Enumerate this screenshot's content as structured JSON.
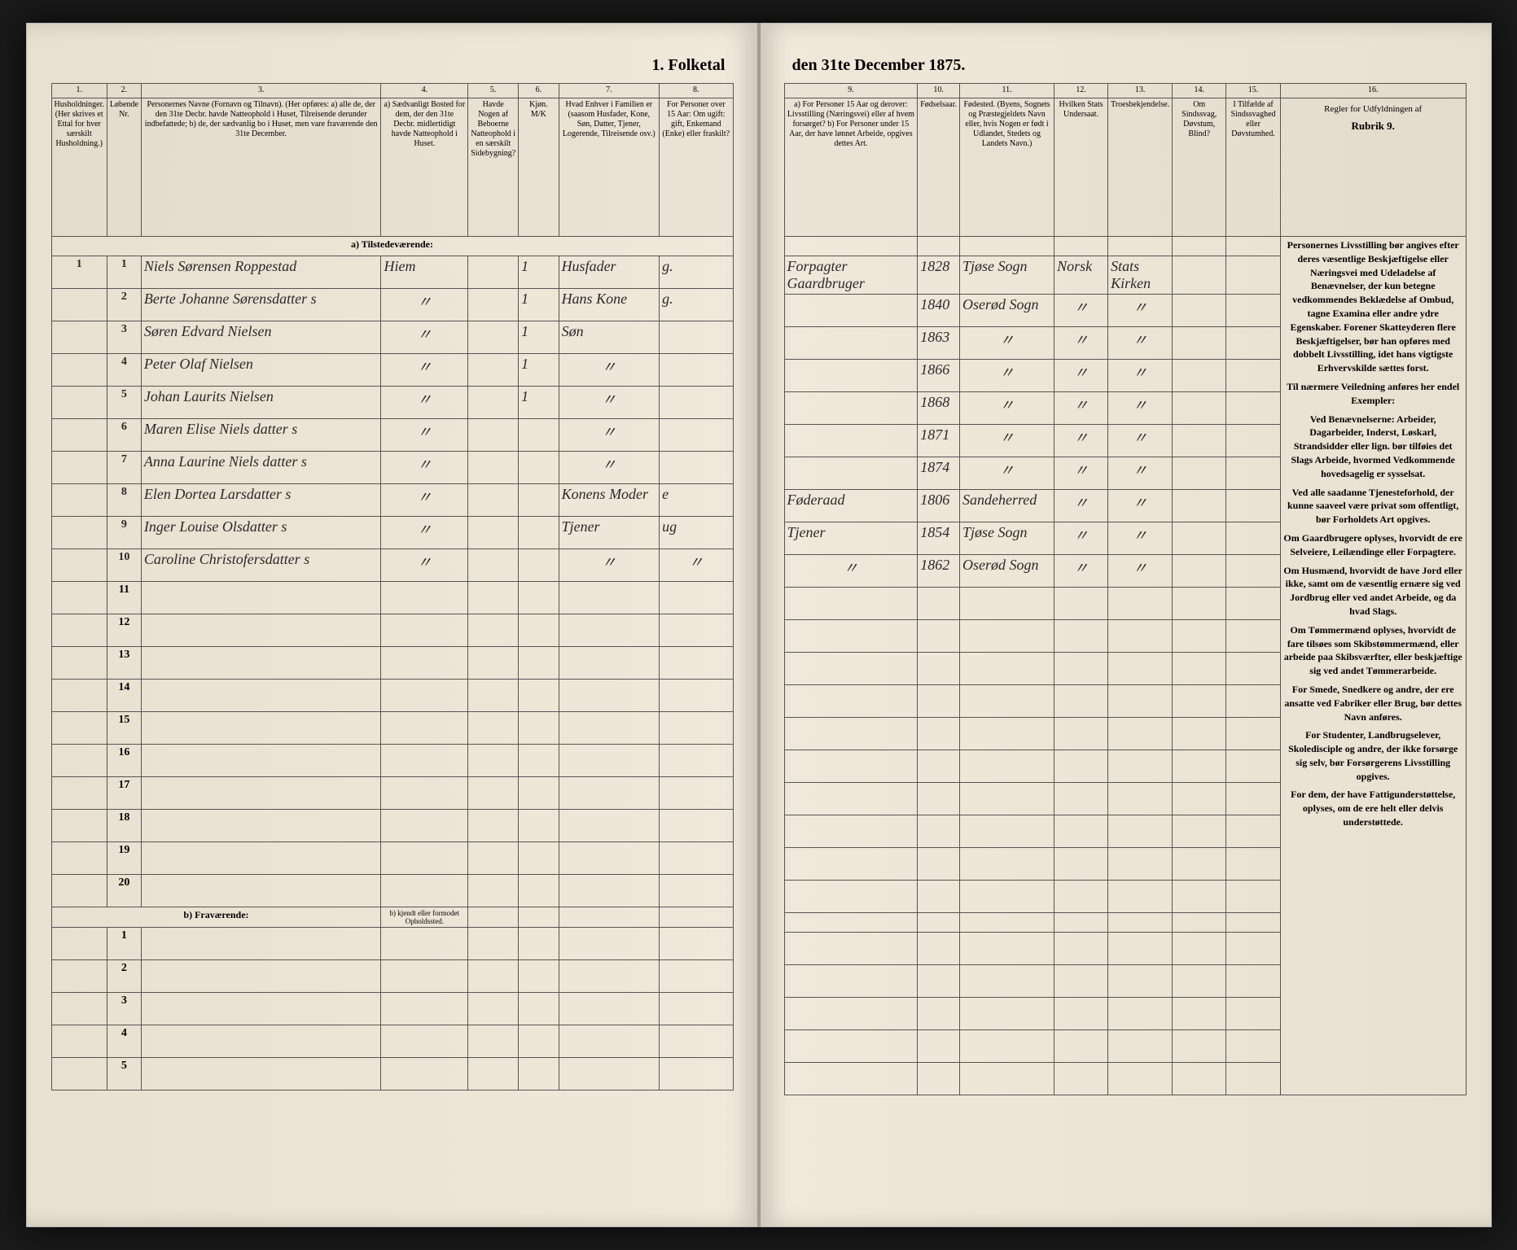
{
  "title_left": "1. Folketal",
  "title_right": "den 31te December 1875.",
  "left_columns": [
    {
      "num": "1.",
      "width": "4%",
      "header": "Husholdninger. (Her skrives et Ettal for hver særskilt Husholdning.)"
    },
    {
      "num": "2.",
      "width": "3%",
      "header": "Løbende Nr."
    },
    {
      "num": "3.",
      "width": "36%",
      "header": "Personernes Navne (Fornavn og Tilnavn). (Her opføres: a) alle de, der den 31te Decbr. havde Natteophold i Huset, Tilreisende derunder indbefattede; b) de, der sædvanlig bo i Huset, men vare fraværende den 31te December."
    },
    {
      "num": "4.",
      "width": "13%",
      "header": "a) Sædvanligt Bosted for dem, der den 31te Decbr. midlertidigt havde Natteophold i Huset."
    },
    {
      "num": "5.",
      "width": "6%",
      "header": "Havde Nogen af Beboerne Natteophold i en særskilt Sidebygning?"
    },
    {
      "num": "6.",
      "width": "6%",
      "header": "Kjøn. M/K"
    },
    {
      "num": "7.",
      "width": "15%",
      "header": "Hvad Enhver i Familien er (saasom Husfader, Kone, Søn, Datter, Tjener, Logerende, Tilreisende osv.)"
    },
    {
      "num": "8.",
      "width": "11%",
      "header": "For Personer over 15 Aar: Om ugift: gift, Enkemand (Enke) eller fraskilt?"
    }
  ],
  "right_columns": [
    {
      "num": "9.",
      "width": "20%",
      "header": "a) For Personer 15 Aar og derover: Livsstilling (Næringsvei) eller af hvem forsørget? b) For Personer under 15 Aar, der have lønnet Arbeide, opgives dettes Art."
    },
    {
      "num": "10.",
      "width": "6%",
      "header": "Fødselsaar."
    },
    {
      "num": "11.",
      "width": "14%",
      "header": "Fødested. (Byens, Sognets og Præstegjeldets Navn eller, hvis Nogen er født i Udlandet, Stedets og Landets Navn.)"
    },
    {
      "num": "12.",
      "width": "8%",
      "header": "Hvilken Stats Undersaat."
    },
    {
      "num": "13.",
      "width": "8%",
      "header": "Troesbekjendelse."
    },
    {
      "num": "14.",
      "width": "8%",
      "header": "Om Sindssvag, Døvstum, Blind?"
    },
    {
      "num": "15.",
      "width": "8%",
      "header": "I Tilfælde af Sindssvaghed eller Døvstumhed."
    },
    {
      "num": "16.",
      "width": "28%",
      "header": ""
    }
  ],
  "instructions_title": "Regler for Udfyldningen af",
  "instructions_rubrik": "Rubrik 9.",
  "instructions_paragraphs": [
    "Personernes Livsstilling bør angives efter deres væsentlige Beskjæftigelse eller Næringsvei med Udeladelse af Benævnelser, der kun betegne vedkommendes Beklædelse af Ombud, tagne Examina eller andre ydre Egenskaber. Forener Skatteyderen flere Beskjæftigelser, bør han opføres med dobbelt Livsstilling, idet hans vigtigste Erhvervskilde sættes forst.",
    "Til nærmere Veiledning anføres her endel Exempler:",
    "Ved Benævnelserne: Arbeider, Dagarbeider, Inderst, Løskarl, Strandsidder eller lign. bør tilføies det Slags Arbeide, hvormed Vedkommende hovedsagelig er sysselsat.",
    "Ved alle saadanne Tjenesteforhold, der kunne saaveel være privat som offentligt, bør Forholdets Art opgives.",
    "Om Gaardbrugere oplyses, hvorvidt de ere Selveiere, Leilændinge eller Forpagtere.",
    "Om Husmænd, hvorvidt de have Jord eller ikke, samt om de væsentlig ernære sig ved Jordbrug eller ved andet Arbeide, og da hvad Slags.",
    "Om Tømmermænd oplyses, hvorvidt de fare tilsøes som Skibstømmermænd, eller arbeide paa Skibsværfter, eller beskjæftige sig ved andet Tømmerarbeide.",
    "For Smede, Snedkere og andre, der ere ansatte ved Fabriker eller Brug, bør dettes Navn anføres.",
    "For Studenter, Landbrugselever, Skoledisciple og andre, der ikke forsørge sig selv, bør Forsørgerens Livsstilling opgives.",
    "For dem, der have Fattigunderstøttelse, oplyses, om de ere helt eller delvis understøttede."
  ],
  "section_a": "a) Tilstedeværende:",
  "section_b": "b) Fraværende:",
  "section_b_col4": "b) kjendt eller formodet Opholdssted.",
  "rows": [
    {
      "n": "1",
      "hh": "1",
      "name": "Niels Sørensen Roppestad",
      "c4": "Hiem",
      "c5": "",
      "c6": "1",
      "c7": "Husfader",
      "c8": "g.",
      "c9": "Forpagter Gaardbruger",
      "c10": "1828",
      "c11": "Tjøse Sogn",
      "c12": "Norsk",
      "c13": "Stats Kirken",
      "c14": "",
      "c15": ""
    },
    {
      "n": "2",
      "hh": "",
      "name": "Berte Johanne Sørensdatter s",
      "c4": "\"",
      "c5": "",
      "c6": "1",
      "c7": "Hans Kone",
      "c8": "g.",
      "c9": "",
      "c10": "1840",
      "c11": "Oserød Sogn",
      "c12": "\"",
      "c13": "\"",
      "c14": "",
      "c15": ""
    },
    {
      "n": "3",
      "hh": "",
      "name": "Søren Edvard Nielsen",
      "c4": "\"",
      "c5": "",
      "c6": "1",
      "c7": "Søn",
      "c8": "",
      "c9": "",
      "c10": "1863",
      "c11": "\"",
      "c12": "\"",
      "c13": "\"",
      "c14": "",
      "c15": ""
    },
    {
      "n": "4",
      "hh": "",
      "name": "Peter Olaf Nielsen",
      "c4": "\"",
      "c5": "",
      "c6": "1",
      "c7": "\"",
      "c8": "",
      "c9": "",
      "c10": "1866",
      "c11": "\"",
      "c12": "\"",
      "c13": "\"",
      "c14": "",
      "c15": ""
    },
    {
      "n": "5",
      "hh": "",
      "name": "Johan Laurits Nielsen",
      "c4": "\"",
      "c5": "",
      "c6": "1",
      "c7": "\"",
      "c8": "",
      "c9": "",
      "c10": "1868",
      "c11": "\"",
      "c12": "\"",
      "c13": "\"",
      "c14": "",
      "c15": ""
    },
    {
      "n": "6",
      "hh": "",
      "name": "Maren Elise Niels datter s",
      "c4": "\"",
      "c5": "",
      "c6": "",
      "c7": "\"",
      "c8": "",
      "c9": "",
      "c10": "1871",
      "c11": "\"",
      "c12": "\"",
      "c13": "\"",
      "c14": "",
      "c15": ""
    },
    {
      "n": "7",
      "hh": "",
      "name": "Anna Laurine Niels datter s",
      "c4": "\"",
      "c5": "",
      "c6": "",
      "c7": "\"",
      "c8": "",
      "c9": "",
      "c10": "1874",
      "c11": "\"",
      "c12": "\"",
      "c13": "\"",
      "c14": "",
      "c15": ""
    },
    {
      "n": "8",
      "hh": "",
      "name": "Elen Dortea Larsdatter s",
      "c4": "\"",
      "c5": "",
      "c6": "",
      "c7": "Konens Moder",
      "c8": "e",
      "c9": "Føderaad",
      "c10": "1806",
      "c11": "Sandeherred",
      "c12": "\"",
      "c13": "\"",
      "c14": "",
      "c15": ""
    },
    {
      "n": "9",
      "hh": "",
      "name": "Inger Louise Olsdatter s",
      "c4": "\"",
      "c5": "",
      "c6": "",
      "c7": "Tjener",
      "c8": "ug",
      "c9": "Tjener",
      "c10": "1854",
      "c11": "Tjøse Sogn",
      "c12": "\"",
      "c13": "\"",
      "c14": "",
      "c15": ""
    },
    {
      "n": "10",
      "hh": "",
      "name": "Caroline Christofersdatter s",
      "c4": "\"",
      "c5": "",
      "c6": "",
      "c7": "\"",
      "c8": "\"",
      "c9": "\"",
      "c10": "1862",
      "c11": "Oserød Sogn",
      "c12": "\"",
      "c13": "\"",
      "c14": "",
      "c15": ""
    }
  ],
  "empty_left_nums": [
    "11",
    "12",
    "13",
    "14",
    "15",
    "16",
    "17",
    "18",
    "19",
    "20"
  ],
  "section_b_nums": [
    "1",
    "2",
    "3",
    "4",
    "5"
  ]
}
